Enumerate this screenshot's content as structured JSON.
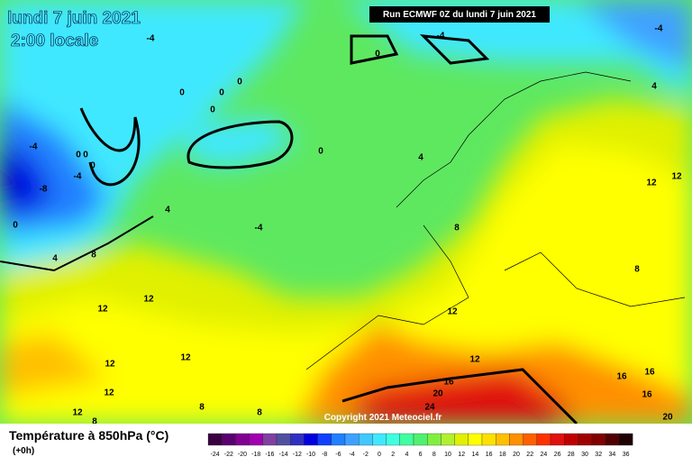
{
  "header": {
    "title": "lundi 7 juin 2021",
    "subtitle": "2:00 locale",
    "run": "Run ECMWF 0Z du lundi 7 juin 2021"
  },
  "copyright": "Copyright 2021 Meteociel.fr",
  "footer": {
    "title": "Température à 850hPa (°C)",
    "step": "(+0h)"
  },
  "legend": {
    "labels": [
      -24,
      -22,
      -20,
      -18,
      -16,
      -14,
      -12,
      -10,
      -8,
      -6,
      -4,
      -2,
      0,
      2,
      4,
      6,
      8,
      10,
      12,
      14,
      16,
      18,
      20,
      22,
      24,
      26,
      28,
      30,
      32,
      34,
      36
    ],
    "colors": [
      "#3a0040",
      "#5a0070",
      "#800090",
      "#a000b0",
      "#80409f",
      "#5050a0",
      "#3030c0",
      "#0000e0",
      "#1040ff",
      "#2080ff",
      "#40a0ff",
      "#40c8ff",
      "#40e8ff",
      "#40ffe0",
      "#40ffa0",
      "#50f070",
      "#80f040",
      "#b0f030",
      "#e0f000",
      "#ffff00",
      "#ffe000",
      "#ffc000",
      "#ff9000",
      "#ff6000",
      "#ff3000",
      "#e01010",
      "#c00000",
      "#a00000",
      "#800000",
      "#500000",
      "#200000"
    ]
  },
  "map_labels": [
    "-4",
    "-4",
    "0",
    "0",
    "0",
    "0",
    "0",
    "0",
    "-4",
    "0",
    "0",
    "0",
    "-4",
    "-8",
    "4",
    "-4",
    "0",
    "4",
    "8",
    "4",
    "8",
    "12",
    "12",
    "12",
    "12",
    "12",
    "12",
    "12",
    "12",
    "8",
    "12",
    "16",
    "20",
    "24",
    "16",
    "16",
    "16",
    "20",
    "8",
    "8",
    "12",
    "8",
    "-4",
    "4"
  ]
}
